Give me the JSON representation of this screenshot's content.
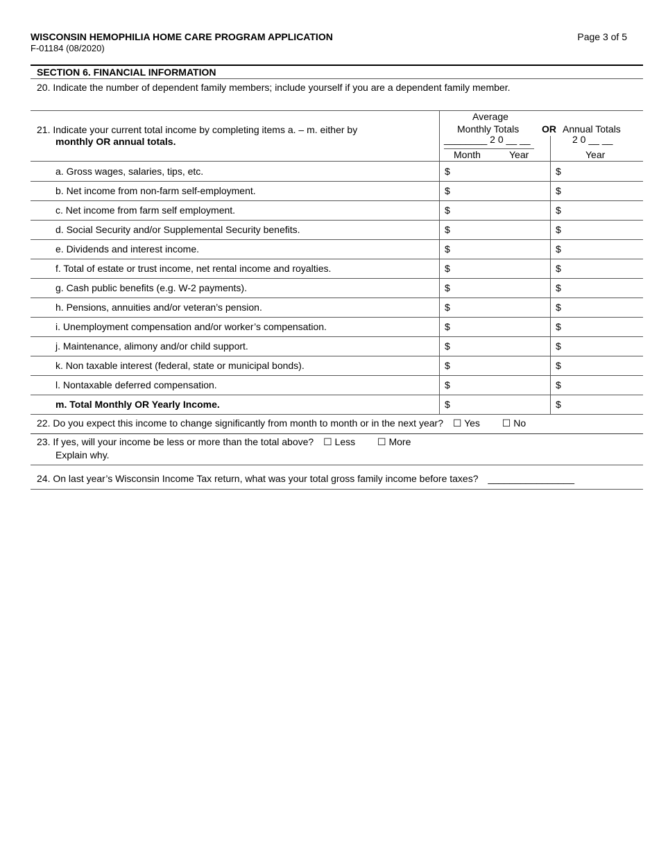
{
  "header": {
    "title": "WISCONSIN HEMOPHILIA HOME CARE PROGRAM APPLICATION",
    "form_id": "F-01184 (08/2020)",
    "page": "Page 3 of 5"
  },
  "section": {
    "title": "SECTION 6.  FINANCIAL INFORMATION"
  },
  "q20": "20. Indicate the number of dependent family members; include yourself if you are a dependent family member.",
  "q21": {
    "text": "21. Indicate your current total income by completing items a. – m. either by",
    "bold": "monthly OR annual totals.",
    "col_monthly": {
      "line1": "Average",
      "line2": "Monthly Totals",
      "year_blank": "________  2 0 __ __",
      "month": "Month",
      "year": "Year"
    },
    "or": "OR",
    "col_annual": {
      "line1": "Annual Totals",
      "year_blank": "2 0 __  __",
      "year": "Year"
    },
    "currency": "$",
    "items": [
      {
        "label": "a.  Gross wages, salaries, tips, etc."
      },
      {
        "label": "b.  Net income from non-farm self-employment."
      },
      {
        "label": "c.  Net income from farm self employment."
      },
      {
        "label": "d.  Social Security and/or Supplemental Security benefits."
      },
      {
        "label": "e.  Dividends and interest income."
      },
      {
        "label": "f.  Total of estate or trust income, net rental income and royalties."
      },
      {
        "label": "g.  Cash public benefits (e.g. W-2 payments)."
      },
      {
        "label": "h.  Pensions, annuities and/or veteran’s pension."
      },
      {
        "label": "i.  Unemployment compensation and/or worker’s compensation."
      },
      {
        "label": "j.  Maintenance, alimony and/or child support."
      },
      {
        "label": "k.  Non taxable interest (federal, state or municipal bonds)."
      },
      {
        "label": "l.  Nontaxable deferred compensation."
      },
      {
        "label": "m. Total Monthly OR Yearly Income."
      }
    ]
  },
  "q22": {
    "text": "22. Do you expect this income to change significantly from month to month or in the next year?",
    "yes": "☐ Yes",
    "no": "☐ No"
  },
  "q23": {
    "text": "23. If yes, will your income be less or more than the total above?",
    "less": "☐ Less",
    "more": "☐ More",
    "explain": "Explain why."
  },
  "q24": {
    "text": "24. On last year’s Wisconsin Income Tax return, what was your total gross family income before taxes?",
    "blank": "________________"
  }
}
